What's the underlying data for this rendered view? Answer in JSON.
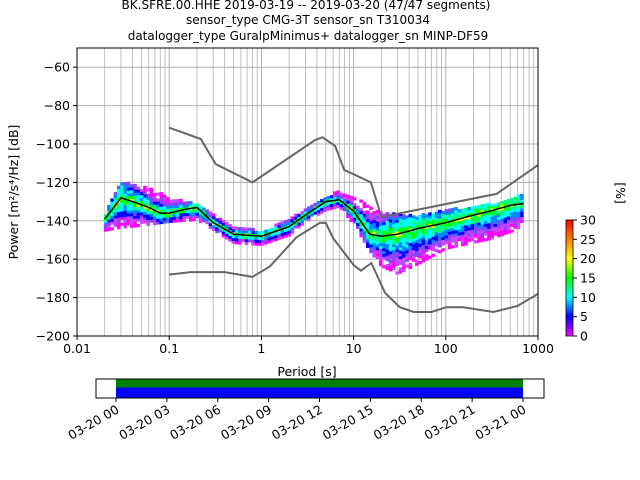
{
  "title_lines": [
    "BK.SFRE.00.HHE   2019-03-19 -- 2019-03-20  (47/47 segments)",
    "sensor_type CMG-3T sensor_sn T310034",
    "datalogger_type GuralpMinimus+ datalogger_sn MINP-DF59"
  ],
  "chart_data": {
    "type": "heatmap",
    "xlabel": "Period [s]",
    "ylabel": "Power [m²/s⁴/Hz] [dB]",
    "x_scale": "log",
    "xlim": [
      0.01,
      1000
    ],
    "ylim": [
      -200,
      -50
    ],
    "x_ticks": [
      0.01,
      0.1,
      1,
      10,
      100,
      1000
    ],
    "x_tick_labels": [
      "0.01",
      "0.1",
      "1",
      "10",
      "100",
      "1000"
    ],
    "y_ticks": [
      -200,
      -180,
      -160,
      -140,
      -120,
      -100,
      -80,
      -60
    ],
    "y_tick_labels": [
      "−200",
      "−180",
      "−160",
      "−140",
      "−120",
      "−100",
      "−80",
      "−60"
    ],
    "grid": true,
    "colorbar": {
      "label": "[%]",
      "range": [
        0,
        30
      ],
      "ticks": [
        0,
        5,
        10,
        15,
        20,
        25,
        30
      ],
      "tick_labels": [
        "0",
        "5",
        "10",
        "15",
        "20",
        "25",
        "30"
      ],
      "colors": [
        "#ffffff",
        "#ff00ff",
        "#0000ff",
        "#00ffff",
        "#00ff00",
        "#ffff00",
        "#ff8000",
        "#ff0000"
      ]
    },
    "mode_line": {
      "color": "#000000",
      "points": [
        [
          0.02,
          -139
        ],
        [
          0.025,
          -133
        ],
        [
          0.03,
          -128
        ],
        [
          0.04,
          -130
        ],
        [
          0.06,
          -133
        ],
        [
          0.08,
          -136
        ],
        [
          0.1,
          -136
        ],
        [
          0.15,
          -134
        ],
        [
          0.2,
          -133
        ],
        [
          0.3,
          -141
        ],
        [
          0.5,
          -147
        ],
        [
          1,
          -148
        ],
        [
          2,
          -143
        ],
        [
          3,
          -137
        ],
        [
          5,
          -130
        ],
        [
          7,
          -129
        ],
        [
          10,
          -135
        ],
        [
          15,
          -147
        ],
        [
          20,
          -148
        ],
        [
          30,
          -147
        ],
        [
          50,
          -144
        ],
        [
          100,
          -141
        ],
        [
          200,
          -137
        ],
        [
          300,
          -135
        ],
        [
          500,
          -132
        ],
        [
          700,
          -131
        ]
      ]
    },
    "nhnm": {
      "color": "#666666",
      "points": [
        [
          0.1,
          -91.5
        ],
        [
          0.22,
          -97.4
        ],
        [
          0.32,
          -110.5
        ],
        [
          0.8,
          -120
        ],
        [
          3.8,
          -98
        ],
        [
          4.6,
          -96.5
        ],
        [
          6.3,
          -101
        ],
        [
          7.9,
          -113.5
        ],
        [
          15.4,
          -120
        ],
        [
          20,
          -138
        ],
        [
          354.8,
          -126
        ],
        [
          1000,
          -111
        ]
      ]
    },
    "nlnm": {
      "color": "#666666",
      "points": [
        [
          0.1,
          -168
        ],
        [
          0.17,
          -166.7
        ],
        [
          0.4,
          -166.7
        ],
        [
          0.8,
          -169.2
        ],
        [
          1.24,
          -163.7
        ],
        [
          2.4,
          -148.6
        ],
        [
          4.3,
          -141.1
        ],
        [
          5,
          -141.1
        ],
        [
          6,
          -149
        ],
        [
          10,
          -163
        ],
        [
          12,
          -166
        ],
        [
          15.6,
          -162
        ],
        [
          21.9,
          -177.5
        ],
        [
          31.6,
          -185
        ],
        [
          45,
          -187.5
        ],
        [
          70,
          -187.5
        ],
        [
          101,
          -185
        ],
        [
          154,
          -185
        ],
        [
          328,
          -187.5
        ],
        [
          600,
          -184.4
        ],
        [
          1000,
          -178
        ]
      ]
    },
    "density_band": {
      "upper": [
        [
          0.018,
          -142
        ],
        [
          0.03,
          -120
        ],
        [
          0.05,
          -122
        ],
        [
          0.1,
          -128
        ],
        [
          0.2,
          -132
        ],
        [
          0.3,
          -136
        ],
        [
          0.5,
          -143
        ],
        [
          1,
          -146
        ],
        [
          2,
          -140
        ],
        [
          3,
          -134
        ],
        [
          5,
          -128
        ],
        [
          7,
          -125
        ],
        [
          10,
          -128
        ],
        [
          15,
          -133
        ],
        [
          20,
          -136
        ],
        [
          30,
          -137
        ],
        [
          50,
          -138
        ],
        [
          100,
          -135
        ],
        [
          300,
          -132
        ],
        [
          600,
          -127
        ],
        [
          750,
          -127
        ]
      ],
      "lower": [
        [
          0.018,
          -146
        ],
        [
          0.03,
          -144
        ],
        [
          0.05,
          -143
        ],
        [
          0.1,
          -141
        ],
        [
          0.2,
          -140
        ],
        [
          0.3,
          -145
        ],
        [
          0.5,
          -152
        ],
        [
          1,
          -153
        ],
        [
          2,
          -148
        ],
        [
          3,
          -141
        ],
        [
          5,
          -135
        ],
        [
          7,
          -133
        ],
        [
          10,
          -142
        ],
        [
          15,
          -156
        ],
        [
          20,
          -164
        ],
        [
          30,
          -168
        ],
        [
          50,
          -163
        ],
        [
          100,
          -155
        ],
        [
          300,
          -150
        ],
        [
          600,
          -145
        ],
        [
          750,
          -136
        ]
      ]
    }
  },
  "timeline": {
    "tick_labels": [
      "03-20 00",
      "03-20 03",
      "03-20 06",
      "03-20 09",
      "03-20 12",
      "03-20 15",
      "03-20 18",
      "03-20 21",
      "03-21 00"
    ],
    "coverage_colors": [
      "#008000",
      "#0000ff"
    ]
  }
}
